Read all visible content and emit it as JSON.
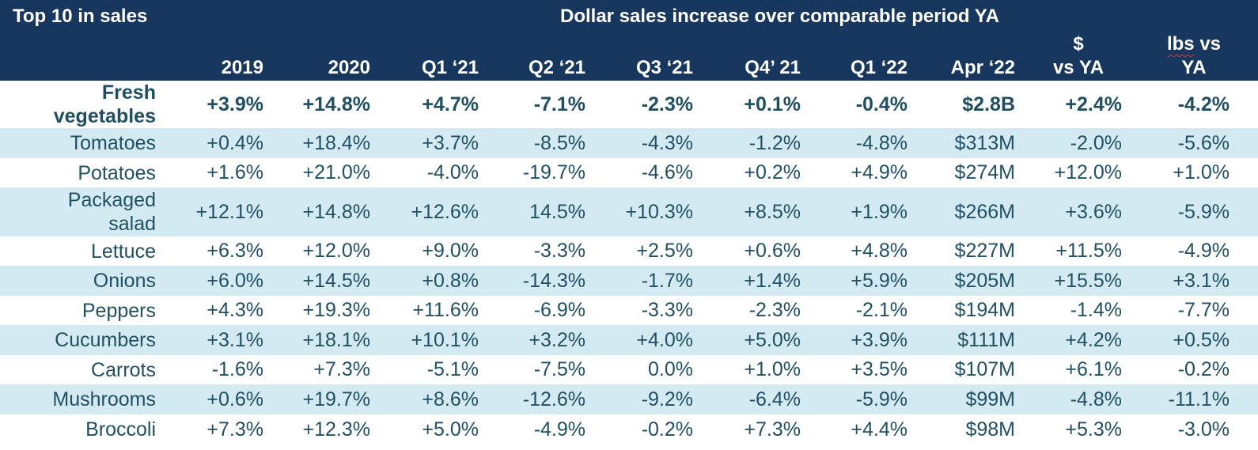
{
  "chart_data": {
    "type": "table",
    "title": "Top 10 in sales",
    "subtitle": "Dollar sales increase over comparable period YA",
    "columns": [
      "2019",
      "2020",
      "Q1 ‘21",
      "Q2 ‘21",
      "Q3 ‘21",
      "Q4’ 21",
      "Q1 ‘22",
      "Apr ‘22",
      "$ vs YA",
      "lbs vs YA"
    ],
    "rows": [
      {
        "label": "Fresh vegetables",
        "values": [
          "+3.9%",
          "+14.8%",
          "+4.7%",
          "-7.1%",
          "-2.3%",
          "+0.1%",
          "-0.4%",
          "$2.8B",
          "+2.4%",
          "-4.2%"
        ]
      },
      {
        "label": "Tomatoes",
        "values": [
          "+0.4%",
          "+18.4%",
          "+3.7%",
          "-8.5%",
          "-4.3%",
          "-1.2%",
          "-4.8%",
          "$313M",
          "-2.0%",
          "-5.6%"
        ]
      },
      {
        "label": "Potatoes",
        "values": [
          "+1.6%",
          "+21.0%",
          "-4.0%",
          "-19.7%",
          "-4.6%",
          "+0.2%",
          "+4.9%",
          "$274M",
          "+12.0%",
          "+1.0%"
        ]
      },
      {
        "label": "Packaged salad",
        "values": [
          "+12.1%",
          "+14.8%",
          "+12.6%",
          "14.5%",
          "+10.3%",
          "+8.5%",
          "+1.9%",
          "$266M",
          "+3.6%",
          "-5.9%"
        ]
      },
      {
        "label": "Lettuce",
        "values": [
          "+6.3%",
          "+12.0%",
          "+9.0%",
          "-3.3%",
          "+2.5%",
          "+0.6%",
          "+4.8%",
          "$227M",
          "+11.5%",
          "-4.9%"
        ]
      },
      {
        "label": "Onions",
        "values": [
          "+6.0%",
          "+14.5%",
          "+0.8%",
          "-14.3%",
          "-1.7%",
          "+1.4%",
          "+5.9%",
          "$205M",
          "+15.5%",
          "+3.1%"
        ]
      },
      {
        "label": "Peppers",
        "values": [
          "+4.3%",
          "+19.3%",
          "+11.6%",
          "-6.9%",
          "-3.3%",
          "-2.3%",
          "-2.1%",
          "$194M",
          "-1.4%",
          "-7.7%"
        ]
      },
      {
        "label": "Cucumbers",
        "values": [
          "+3.1%",
          "+18.1%",
          "+10.1%",
          "+3.2%",
          "+4.0%",
          "+5.0%",
          "+3.9%",
          "$111M",
          "+4.2%",
          "+0.5%"
        ]
      },
      {
        "label": "Carrots",
        "values": [
          "-1.6%",
          "+7.3%",
          "-5.1%",
          "-7.5%",
          "0.0%",
          "+1.0%",
          "+3.5%",
          "$107M",
          "+6.1%",
          "-0.2%"
        ]
      },
      {
        "label": "Mushrooms",
        "values": [
          "+0.6%",
          "+19.7%",
          "+8.6%",
          "-12.6%",
          "-9.2%",
          "-6.4%",
          "-5.9%",
          "$99M",
          "-4.8%",
          "-11.1%"
        ]
      },
      {
        "label": "Broccoli",
        "values": [
          "+7.3%",
          "+12.3%",
          "+5.0%",
          "-4.9%",
          "-0.2%",
          "+7.3%",
          "+4.4%",
          "$98M",
          "+5.3%",
          "-3.0%"
        ]
      }
    ]
  },
  "colors": {
    "header_bg": "#17375e",
    "header_text": "#ffffff",
    "band_bg": "#d4eaf2",
    "body_text": "#1f5064"
  }
}
